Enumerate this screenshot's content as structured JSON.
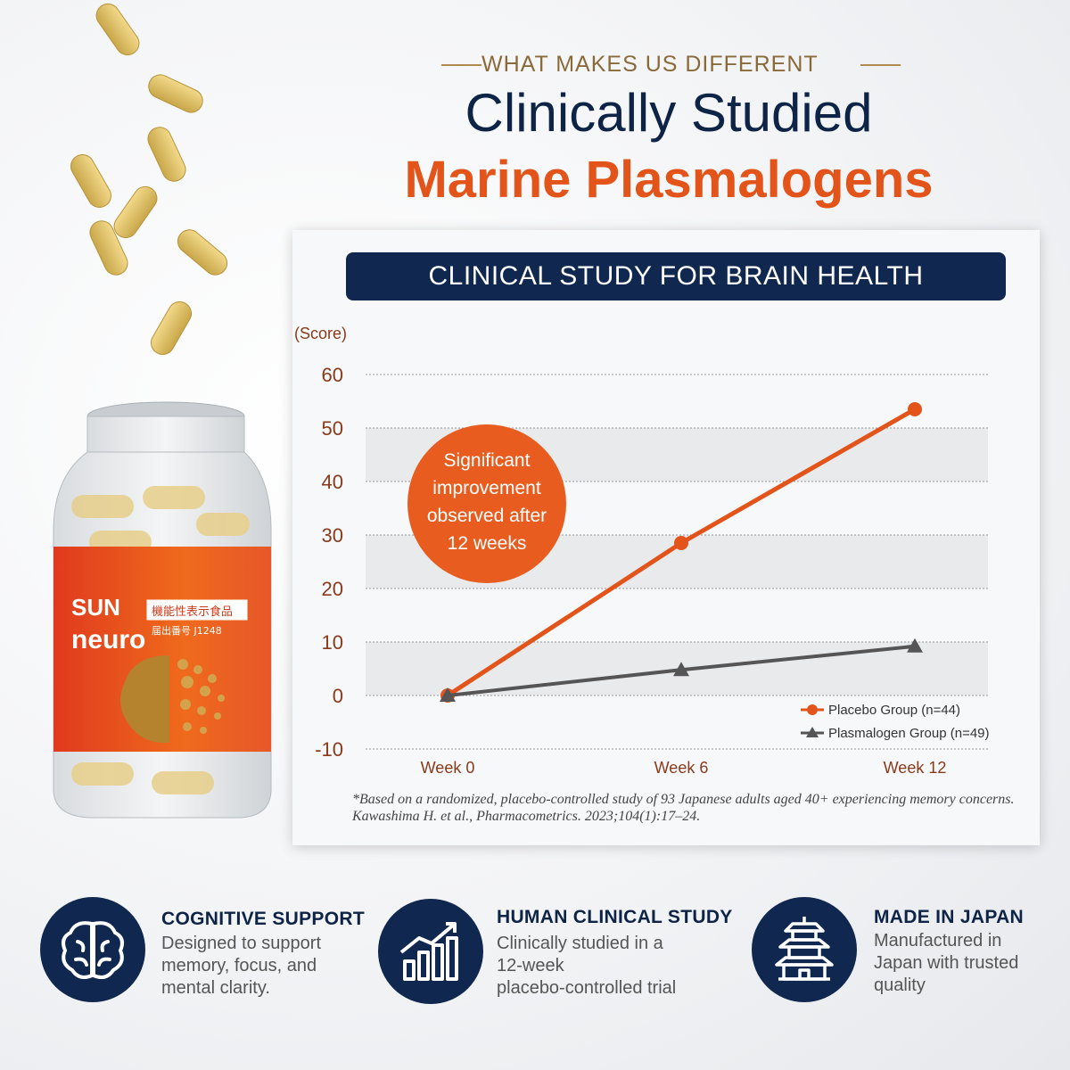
{
  "header": {
    "kicker": "WHAT MAKES US DIFFERENT",
    "title_line1": "Clinically Studied",
    "title_line2": "Marine Plasmalogens"
  },
  "product": {
    "brand_line1": "SUN",
    "brand_line2": "neuro",
    "label_jp": "機能性表示食品",
    "label_reg": "届出番号 J1248",
    "accent_color": "#e2541a"
  },
  "chart_data": {
    "type": "line",
    "title": "CLINICAL STUDY FOR BRAIN HEALTH",
    "ylabel": "(Score)",
    "xlabel": "",
    "categories": [
      "Week 0",
      "Week 6",
      "Week 12"
    ],
    "ylim": [
      -10,
      60
    ],
    "yticks": [
      60,
      50,
      40,
      30,
      20,
      10,
      0,
      -10
    ],
    "grid": true,
    "legend_position": "bottom-right",
    "series": [
      {
        "name": "Placebo Group (n=44)",
        "values": [
          0,
          28.5,
          53.5
        ],
        "color": "#e2541a",
        "marker": "circle"
      },
      {
        "name": "Plasmalogen Group (n=49)",
        "values": [
          0,
          4.8,
          9.2
        ],
        "color": "#555555",
        "marker": "triangle"
      }
    ],
    "annotation": "Significant improvement observed after 12 weeks",
    "footnote": "*Based on a randomized, placebo-controlled study of 93 Japanese adults aged 40+ experiencing memory concerns. Kawashima H. et al., Pharmacometrics. 2023;104(1):17–24."
  },
  "features": [
    {
      "icon": "brain-icon",
      "title": "COGNITIVE SUPPORT",
      "desc": [
        "Designed to support",
        "memory, focus, and",
        "mental clarity."
      ]
    },
    {
      "icon": "growth-chart-icon",
      "title": "HUMAN CLINICAL STUDY",
      "desc": [
        "Clinically studied in a",
        "12-week",
        "placebo-controlled trial"
      ]
    },
    {
      "icon": "pagoda-icon",
      "title": "MADE IN JAPAN",
      "desc": [
        "Manufactured in",
        "Japan with trusted",
        "quality"
      ]
    }
  ]
}
